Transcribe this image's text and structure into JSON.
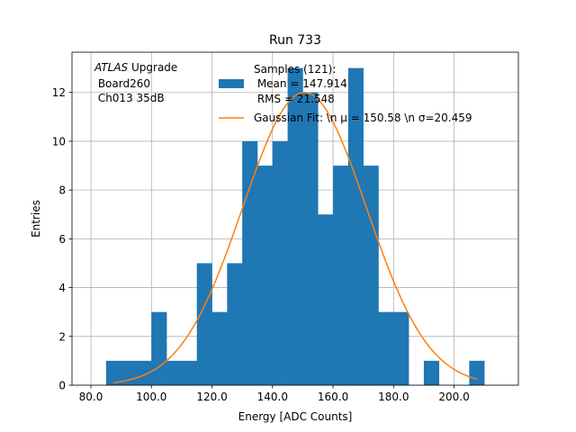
{
  "chart_data": {
    "type": "histogram",
    "title": "Run 733",
    "xlabel": "Energy [ADC Counts]",
    "ylabel": "Entries",
    "xlim": [
      73.75,
      221.25
    ],
    "ylim": [
      0,
      13.65
    ],
    "grid": true,
    "xticks": [
      80.0,
      100.0,
      120.0,
      140.0,
      160.0,
      180.0,
      200.0
    ],
    "xtick_labels": [
      "80.0",
      "100.0",
      "120.0",
      "140.0",
      "160.0",
      "180.0",
      "200.0"
    ],
    "yticks": [
      0,
      2,
      4,
      6,
      8,
      10,
      12
    ],
    "ytick_labels": [
      "0",
      "2",
      "4",
      "6",
      "8",
      "10",
      "12"
    ],
    "bins": [
      {
        "x0": 85,
        "x1": 90,
        "count": 1
      },
      {
        "x0": 90,
        "x1": 95,
        "count": 1
      },
      {
        "x0": 95,
        "x1": 100,
        "count": 1
      },
      {
        "x0": 100,
        "x1": 105,
        "count": 3
      },
      {
        "x0": 105,
        "x1": 110,
        "count": 1
      },
      {
        "x0": 110,
        "x1": 115,
        "count": 1
      },
      {
        "x0": 115,
        "x1": 120,
        "count": 5
      },
      {
        "x0": 120,
        "x1": 125,
        "count": 3
      },
      {
        "x0": 125,
        "x1": 130,
        "count": 5
      },
      {
        "x0": 130,
        "x1": 135,
        "count": 10
      },
      {
        "x0": 135,
        "x1": 140,
        "count": 9
      },
      {
        "x0": 140,
        "x1": 145,
        "count": 10
      },
      {
        "x0": 145,
        "x1": 150,
        "count": 13
      },
      {
        "x0": 150,
        "x1": 155,
        "count": 12
      },
      {
        "x0": 155,
        "x1": 160,
        "count": 7
      },
      {
        "x0": 160,
        "x1": 165,
        "count": 9
      },
      {
        "x0": 165,
        "x1": 170,
        "count": 13
      },
      {
        "x0": 170,
        "x1": 175,
        "count": 9
      },
      {
        "x0": 175,
        "x1": 180,
        "count": 3
      },
      {
        "x0": 180,
        "x1": 185,
        "count": 3
      },
      {
        "x0": 185,
        "x1": 190,
        "count": 0
      },
      {
        "x0": 190,
        "x1": 195,
        "count": 1
      },
      {
        "x0": 195,
        "x1": 200,
        "count": 0
      },
      {
        "x0": 200,
        "x1": 205,
        "count": 0
      },
      {
        "x0": 205,
        "x1": 210,
        "count": 1
      }
    ],
    "fit": {
      "type": "gaussian",
      "mu": 150.58,
      "sigma": 20.459,
      "amplitude": 12.0,
      "x_range": [
        87.5,
        207.5
      ]
    },
    "annotation": {
      "line1_italic": "ATLAS",
      "line1_rest": " Upgrade",
      "line2": " Board260",
      "line3": " Ch013 35dB"
    },
    "legend": {
      "position": "top-center",
      "hist_lines": [
        "Samples (121):",
        " Mean = 147.914",
        " RMS = 21.548"
      ],
      "fit_label": "Gaussian Fit: \\n μ = 150.58 \\n σ=20.459"
    },
    "colors": {
      "bars": "#1f77b4",
      "fit": "#ff7f0e",
      "grid": "#b0b0b0",
      "axes": "#000000"
    }
  }
}
